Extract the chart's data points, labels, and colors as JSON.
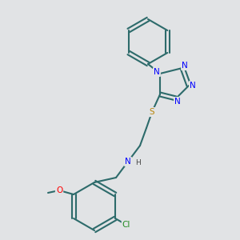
{
  "bg_color": "#E1E3E5",
  "bond_color": "#2d6b6b",
  "bond_lw": 1.5,
  "atom_colors": {
    "N": "#0000ff",
    "S": "#b8860b",
    "O": "#ff0000",
    "Cl": "#228B22",
    "C": "#000000",
    "H": "#444444"
  },
  "font_size": 7.5,
  "font_size_small": 6.5
}
